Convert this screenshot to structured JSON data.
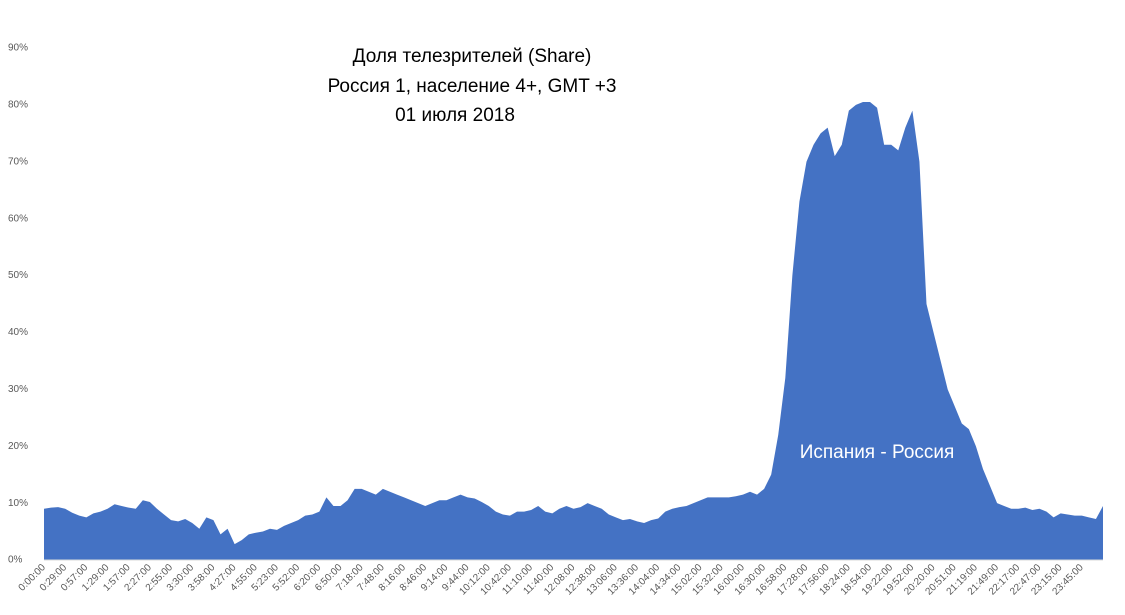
{
  "chart_data": {
    "type": "area",
    "title": [
      "Доля телезрителей (Share)",
      "Россия 1, население 4+, GMT +3",
      "01 июля 2018"
    ],
    "annotation": "Испания - Россия",
    "color": "#4472c4",
    "categories": [
      "0:00:00",
      null,
      null,
      "0:29:00",
      null,
      null,
      "0:57:00",
      null,
      null,
      "1:29:00",
      null,
      null,
      "1:57:00",
      null,
      null,
      "2:27:00",
      null,
      null,
      "2:55:00",
      null,
      null,
      "3:30:00",
      null,
      null,
      "3:58:00",
      null,
      null,
      "4:27:00",
      null,
      null,
      "4:55:00",
      null,
      null,
      "5:23:00",
      null,
      null,
      "5:52:00",
      null,
      null,
      "6:20:00",
      null,
      null,
      "6:50:00",
      null,
      null,
      "7:18:00",
      null,
      null,
      "7:48:00",
      null,
      null,
      "8:16:00",
      null,
      null,
      "8:46:00",
      null,
      null,
      "9:14:00",
      null,
      null,
      "9:44:00",
      null,
      null,
      "10:12:00",
      null,
      null,
      "10:42:00",
      null,
      null,
      "11:10:00",
      null,
      null,
      "11:40:00",
      null,
      null,
      "12:08:00",
      null,
      null,
      "12:38:00",
      null,
      null,
      "13:06:00",
      null,
      null,
      "13:36:00",
      null,
      null,
      "14:04:00",
      null,
      null,
      "14:34:00",
      null,
      null,
      "15:02:00",
      null,
      null,
      "15:32:00",
      null,
      null,
      "16:00:00",
      null,
      null,
      "16:30:00",
      null,
      null,
      "16:58:00",
      null,
      null,
      "17:28:00",
      null,
      null,
      "17:56:00",
      null,
      null,
      "18:24:00",
      null,
      null,
      "18:54:00",
      null,
      null,
      "19:22:00",
      null,
      null,
      "19:52:00",
      null,
      null,
      "20:20:00",
      null,
      null,
      "20:51:00",
      null,
      null,
      "21:19:00",
      null,
      null,
      "21:49:00",
      null,
      null,
      "22:17:00",
      null,
      null,
      "22:47:00",
      null,
      null,
      "23:15:00",
      null,
      null,
      "23:45:00",
      null,
      null,
      null
    ],
    "values": [
      9,
      9.2,
      9.3,
      9,
      8.3,
      7.8,
      7.5,
      8.2,
      8.5,
      9,
      9.8,
      9.5,
      9.2,
      9,
      10.5,
      10.2,
      9,
      8,
      7,
      6.8,
      7.2,
      6.5,
      5.5,
      7.5,
      7,
      4.5,
      5.5,
      2.8,
      3.5,
      4.5,
      4.8,
      5,
      5.5,
      5.3,
      6,
      6.5,
      7,
      7.8,
      8,
      8.5,
      11,
      9.5,
      9.5,
      10.5,
      12.5,
      12.5,
      12,
      11.5,
      12.5,
      12,
      11.5,
      11,
      10.5,
      10,
      9.5,
      10,
      10.5,
      10.5,
      11,
      11.5,
      11,
      10.8,
      10.2,
      9.5,
      8.5,
      8,
      7.8,
      8.5,
      8.5,
      8.8,
      9.5,
      8.5,
      8.2,
      9,
      9.5,
      9,
      9.3,
      10,
      9.5,
      9,
      8,
      7.5,
      7,
      7.2,
      6.8,
      6.5,
      7,
      7.3,
      8.5,
      9,
      9.3,
      9.5,
      10,
      10.5,
      11,
      11,
      11,
      11,
      11.2,
      11.5,
      12,
      11.5,
      12.5,
      15,
      22,
      32,
      50,
      63,
      70,
      73,
      75,
      76,
      71,
      73,
      79,
      80,
      80.5,
      80.5,
      79.5,
      73,
      73,
      72,
      76,
      79,
      70,
      45,
      40,
      35,
      30,
      27,
      24,
      23,
      20,
      16,
      13,
      10,
      9.5,
      9,
      9,
      9.2,
      8.8,
      9,
      8.5,
      7.5,
      8.2,
      8,
      7.8,
      7.8,
      7.5,
      7.2,
      9.5
    ],
    "ylim": [
      0,
      90
    ],
    "yticks": [
      {
        "value": 0,
        "label": "0%"
      },
      {
        "value": 10,
        "label": "10%"
      },
      {
        "value": 20,
        "label": "20%"
      },
      {
        "value": 30,
        "label": "30%"
      },
      {
        "value": 40,
        "label": "40%"
      },
      {
        "value": 50,
        "label": "50%"
      },
      {
        "value": 60,
        "label": "60%"
      },
      {
        "value": 70,
        "label": "70%"
      },
      {
        "value": 80,
        "label": "80%"
      },
      {
        "value": 90,
        "label": "90%"
      }
    ],
    "grid": false
  }
}
